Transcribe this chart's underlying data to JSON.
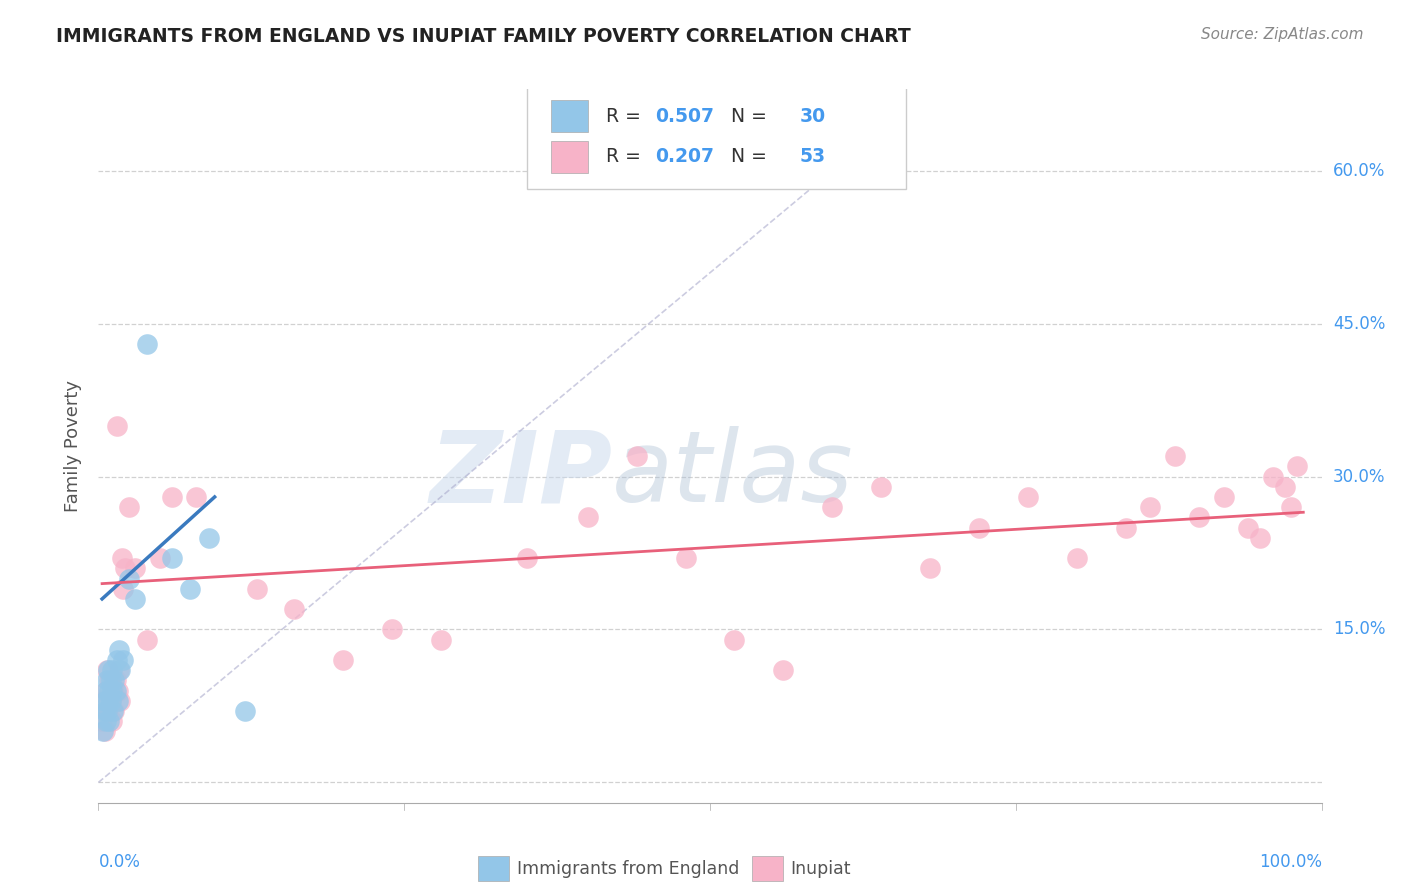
{
  "title": "IMMIGRANTS FROM ENGLAND VS INUPIAT FAMILY POVERTY CORRELATION CHART",
  "source": "Source: ZipAtlas.com",
  "ylabel": "Family Poverty",
  "y_ticks": [
    0.0,
    0.15,
    0.3,
    0.45,
    0.6
  ],
  "xlim": [
    0.0,
    1.0
  ],
  "ylim": [
    -0.02,
    0.68
  ],
  "legend_label1": "R = 0.507   N = 30",
  "legend_label2": "R = 0.207   N = 53",
  "legend_bottom1": "Immigrants from England",
  "legend_bottom2": "Inupiat",
  "blue_color": "#93c6e8",
  "pink_color": "#f7b3c8",
  "line_blue": "#3a7abf",
  "line_pink": "#e8607a",
  "text_blue": "#4499ee",
  "text_dark": "#333333",
  "blue_points_x": [
    0.004,
    0.005,
    0.005,
    0.006,
    0.006,
    0.007,
    0.007,
    0.008,
    0.008,
    0.009,
    0.009,
    0.01,
    0.01,
    0.011,
    0.011,
    0.012,
    0.013,
    0.014,
    0.015,
    0.016,
    0.017,
    0.018,
    0.02,
    0.025,
    0.03,
    0.04,
    0.06,
    0.075,
    0.09,
    0.12
  ],
  "blue_points_y": [
    0.05,
    0.07,
    0.08,
    0.06,
    0.09,
    0.07,
    0.1,
    0.08,
    0.11,
    0.09,
    0.06,
    0.1,
    0.08,
    0.09,
    0.11,
    0.07,
    0.1,
    0.09,
    0.12,
    0.08,
    0.13,
    0.11,
    0.12,
    0.2,
    0.18,
    0.43,
    0.22,
    0.19,
    0.24,
    0.07
  ],
  "pink_points_x": [
    0.003,
    0.004,
    0.005,
    0.006,
    0.007,
    0.008,
    0.009,
    0.01,
    0.011,
    0.012,
    0.013,
    0.014,
    0.015,
    0.016,
    0.017,
    0.018,
    0.019,
    0.02,
    0.022,
    0.025,
    0.03,
    0.04,
    0.05,
    0.06,
    0.08,
    0.13,
    0.16,
    0.2,
    0.24,
    0.28,
    0.35,
    0.4,
    0.44,
    0.48,
    0.52,
    0.56,
    0.6,
    0.64,
    0.68,
    0.72,
    0.76,
    0.8,
    0.84,
    0.86,
    0.88,
    0.9,
    0.92,
    0.94,
    0.95,
    0.96,
    0.97,
    0.975,
    0.98
  ],
  "pink_points_y": [
    0.06,
    0.08,
    0.05,
    0.09,
    0.11,
    0.07,
    0.1,
    0.08,
    0.06,
    0.09,
    0.07,
    0.1,
    0.35,
    0.09,
    0.11,
    0.08,
    0.22,
    0.19,
    0.21,
    0.27,
    0.21,
    0.14,
    0.22,
    0.28,
    0.28,
    0.19,
    0.17,
    0.12,
    0.15,
    0.14,
    0.22,
    0.26,
    0.32,
    0.22,
    0.14,
    0.11,
    0.27,
    0.29,
    0.21,
    0.25,
    0.28,
    0.22,
    0.25,
    0.27,
    0.32,
    0.26,
    0.28,
    0.25,
    0.24,
    0.3,
    0.29,
    0.27,
    0.31
  ],
  "blue_line_x": [
    0.003,
    0.095
  ],
  "blue_line_y": [
    0.18,
    0.28
  ],
  "pink_line_x": [
    0.003,
    0.985
  ],
  "pink_line_y": [
    0.195,
    0.265
  ],
  "diag_line_x": [
    0.0,
    0.66
  ],
  "diag_line_y": [
    0.0,
    0.66
  ]
}
